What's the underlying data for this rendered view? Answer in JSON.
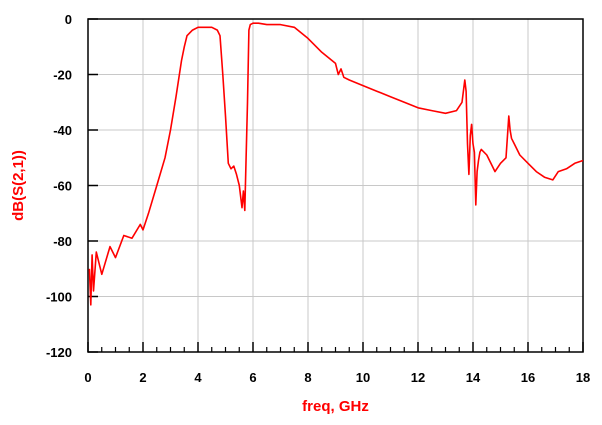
{
  "colors": {
    "trace": "#ff0000",
    "grid": "#c8c8c8",
    "frame": "#000000",
    "label": "#ff0000"
  },
  "chart_data": {
    "type": "line",
    "title": "",
    "xlabel": "freq, GHz",
    "ylabel": "dB(S(2,1))",
    "xlim": [
      0,
      18
    ],
    "ylim": [
      -120,
      0
    ],
    "xticks": [
      0,
      2,
      4,
      6,
      8,
      10,
      12,
      14,
      16,
      18
    ],
    "yticks": [
      0,
      -20,
      -40,
      -60,
      -80,
      -100,
      -120
    ],
    "grid": true,
    "legend": "none",
    "series": [
      {
        "color": "#ff0000",
        "x": [
          0.05,
          0.1,
          0.15,
          0.2,
          0.3,
          0.5,
          0.8,
          1.0,
          1.3,
          1.6,
          1.9,
          2.0,
          2.2,
          2.5,
          2.8,
          3.0,
          3.2,
          3.4,
          3.5,
          3.6,
          3.8,
          4.0,
          4.2,
          4.5,
          4.7,
          4.8,
          4.9,
          5.0,
          5.1,
          5.2,
          5.3,
          5.4,
          5.5,
          5.6,
          5.65,
          5.7,
          5.75,
          5.8,
          5.85,
          5.9,
          6.0,
          6.2,
          6.5,
          7.0,
          7.5,
          8.0,
          8.5,
          9.0,
          9.1,
          9.2,
          9.3,
          9.5,
          10.0,
          10.5,
          11.0,
          11.5,
          12.0,
          12.5,
          13.0,
          13.4,
          13.6,
          13.7,
          13.75,
          13.8,
          13.85,
          13.9,
          13.95,
          14.0,
          14.05,
          14.1,
          14.15,
          14.2,
          14.25,
          14.3,
          14.5,
          14.7,
          14.8,
          15.0,
          15.2,
          15.3,
          15.35,
          15.4,
          15.5,
          15.7,
          16.0,
          16.3,
          16.6,
          16.9,
          17.1,
          17.4,
          17.7,
          18.0
        ],
        "y": [
          -90,
          -103,
          -85,
          -98,
          -84,
          -92,
          -82,
          -86,
          -78,
          -79,
          -74,
          -76,
          -70,
          -60,
          -50,
          -40,
          -28,
          -15,
          -10,
          -6,
          -4,
          -3,
          -3,
          -3,
          -4,
          -6,
          -20,
          -35,
          -52,
          -54,
          -53,
          -56,
          -60,
          -68,
          -62,
          -69,
          -50,
          -30,
          -4,
          -2,
          -1.5,
          -1.5,
          -2,
          -2,
          -3,
          -7,
          -12,
          -16,
          -20,
          -18,
          -21,
          -22,
          -24,
          -26,
          -28,
          -30,
          -32,
          -33,
          -34,
          -33,
          -30,
          -22,
          -26,
          -45,
          -56,
          -42,
          -38,
          -45,
          -48,
          -67,
          -55,
          -51,
          -48,
          -47,
          -49,
          -53,
          -55,
          -52,
          -50,
          -35,
          -40,
          -43,
          -45,
          -49,
          -52,
          -55,
          -57,
          -58,
          -55,
          -54,
          -52,
          -51
        ]
      }
    ]
  }
}
